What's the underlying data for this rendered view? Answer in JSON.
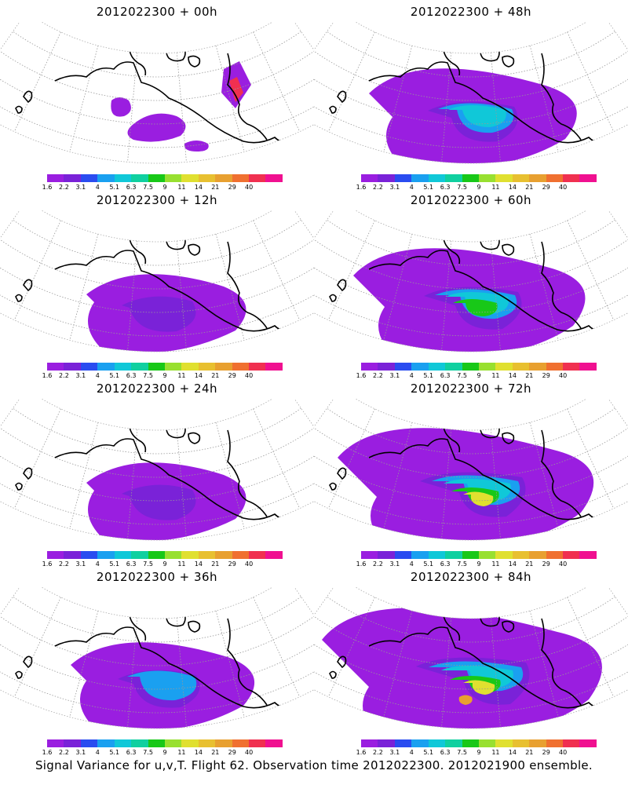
{
  "panels": [
    {
      "title": "2012022300  + 00h",
      "level": 0
    },
    {
      "title": "2012022300  + 48h",
      "level": 3
    },
    {
      "title": "2012022300  + 12h",
      "level": 1
    },
    {
      "title": "2012022300  + 60h",
      "level": 4
    },
    {
      "title": "2012022300  + 24h",
      "level": 1
    },
    {
      "title": "2012022300  + 72h",
      "level": 5
    },
    {
      "title": "2012022300  + 36h",
      "level": 2
    },
    {
      "title": "2012022300  + 84h",
      "level": 6
    }
  ],
  "colorbar": {
    "labels": [
      "1.6",
      "2.2",
      "3.1",
      "4",
      "5.1",
      "6.3",
      "7.5",
      "9",
      "11",
      "14",
      "21",
      "29",
      "40"
    ],
    "colors": [
      "#9a1ee0",
      "#7a22d8",
      "#2a4cf0",
      "#1aa0f0",
      "#10c8d8",
      "#10d0a0",
      "#18c818",
      "#98e030",
      "#e0e030",
      "#e8c030",
      "#e8a030",
      "#f07030",
      "#f03050",
      "#f01090"
    ]
  },
  "footer": "Signal Variance for u,v,T. Flight 62. Observation time 2012022300. 2012021900 ensemble."
}
